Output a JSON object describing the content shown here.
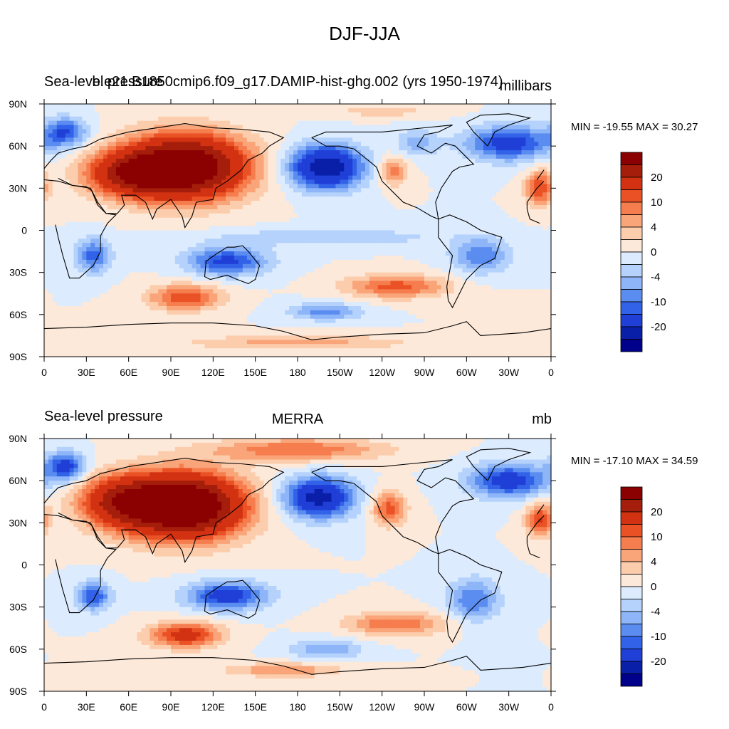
{
  "figure": {
    "title": "DJF-JJA"
  },
  "colors": {
    "levels": [
      "#00008b",
      "#0a1fa8",
      "#1f3fd6",
      "#3262e8",
      "#5b8cf0",
      "#8db5f8",
      "#b4d2fb",
      "#dcebfd",
      "#fde9d9",
      "#fccdad",
      "#f9a579",
      "#f57d4e",
      "#ea5226",
      "#d23211",
      "#a51e0b",
      "#8b0000"
    ],
    "coast": "#000000"
  },
  "panels": [
    {
      "left_string": "Sea-level pressure",
      "center_string": "b.e21.B1850cmip6.f09_g17.DAMIP-hist-ghg.002 (yrs 1950-1974)",
      "units": "millibars",
      "min_max": "MIN = -19.55 MAX =  30.27",
      "x_ticks": [
        "0",
        "30E",
        "60E",
        "90E",
        "120E",
        "150E",
        "180",
        "150W",
        "120W",
        "90W",
        "60W",
        "30W",
        "0"
      ],
      "y_ticks": [
        "90N",
        "60N",
        "30N",
        "0",
        "30S",
        "60S",
        "90S"
      ],
      "colorbar_labels": [
        "20",
        "10",
        "4",
        "0",
        "-4",
        "-10",
        "-20"
      ]
    },
    {
      "left_string": "Sea-level pressure",
      "center_string": "MERRA",
      "units": "mb",
      "min_max": "MIN = -17.10 MAX =  34.59",
      "x_ticks": [
        "0",
        "30E",
        "60E",
        "90E",
        "120E",
        "150E",
        "180",
        "150W",
        "120W",
        "90W",
        "60W",
        "30W",
        "0"
      ],
      "y_ticks": [
        "90N",
        "60N",
        "30N",
        "0",
        "30S",
        "60S",
        "90S"
      ],
      "colorbar_labels": [
        "20",
        "10",
        "4",
        "0",
        "-4",
        "-10",
        "-20"
      ]
    }
  ],
  "chart_data": {
    "type": "heatmap",
    "contour_levels": [
      -20,
      -15,
      -10,
      -8,
      -6,
      -4,
      -2,
      0,
      2,
      4,
      6,
      8,
      10,
      15,
      20
    ],
    "x_axis": "longitude 0 to 360 (0 … 180 … 0)",
    "y_axis": "latitude -90 to 90",
    "fields": [
      {
        "panel": 0,
        "features": [
          {
            "lon": 100,
            "lat": 45,
            "amp": 28,
            "sx": 42,
            "sy": 22
          },
          {
            "lon": 60,
            "lat": 40,
            "amp": 14,
            "sx": 30,
            "sy": 15
          },
          {
            "lon": 200,
            "lat": 45,
            "amp": -19,
            "sx": 25,
            "sy": 15
          },
          {
            "lon": 330,
            "lat": 62,
            "amp": -12,
            "sx": 30,
            "sy": 12
          },
          {
            "lon": 15,
            "lat": 70,
            "amp": -10,
            "sx": 15,
            "sy": 10
          },
          {
            "lon": 265,
            "lat": 62,
            "amp": -5,
            "sx": 15,
            "sy": 10
          },
          {
            "lon": 248,
            "lat": 42,
            "amp": 7,
            "sx": 10,
            "sy": 10
          },
          {
            "lon": 352,
            "lat": 30,
            "amp": 10,
            "sx": 10,
            "sy": 12
          },
          {
            "lon": 130,
            "lat": -22,
            "amp": -11,
            "sx": 28,
            "sy": 10
          },
          {
            "lon": 35,
            "lat": -18,
            "amp": -9,
            "sx": 12,
            "sy": 12
          },
          {
            "lon": 310,
            "lat": -18,
            "amp": -8,
            "sx": 20,
            "sy": 12
          },
          {
            "lon": 100,
            "lat": -48,
            "amp": 10,
            "sx": 25,
            "sy": 9
          },
          {
            "lon": 250,
            "lat": -40,
            "amp": 9,
            "sx": 35,
            "sy": 8
          },
          {
            "lon": 200,
            "lat": -58,
            "amp": -7,
            "sx": 25,
            "sy": 6
          },
          {
            "lon": 200,
            "lat": -5,
            "amp": -4,
            "sx": 80,
            "sy": 6
          },
          {
            "lon": 180,
            "lat": -80,
            "amp": 5,
            "sx": 80,
            "sy": 5
          },
          {
            "lon": 240,
            "lat": 85,
            "amp": 3,
            "sx": 40,
            "sy": 5
          }
        ]
      },
      {
        "panel": 1,
        "features": [
          {
            "lon": 100,
            "lat": 42,
            "amp": 30,
            "sx": 40,
            "sy": 22
          },
          {
            "lon": 55,
            "lat": 45,
            "amp": 15,
            "sx": 30,
            "sy": 18
          },
          {
            "lon": 195,
            "lat": 48,
            "amp": -17,
            "sx": 24,
            "sy": 14
          },
          {
            "lon": 330,
            "lat": 60,
            "amp": -12,
            "sx": 28,
            "sy": 12
          },
          {
            "lon": 15,
            "lat": 70,
            "amp": -12,
            "sx": 14,
            "sy": 10
          },
          {
            "lon": 245,
            "lat": 40,
            "amp": 9,
            "sx": 12,
            "sy": 12
          },
          {
            "lon": 352,
            "lat": 32,
            "amp": 10,
            "sx": 10,
            "sy": 12
          },
          {
            "lon": 180,
            "lat": 82,
            "amp": 8,
            "sx": 60,
            "sy": 8
          },
          {
            "lon": 130,
            "lat": -22,
            "amp": -12,
            "sx": 28,
            "sy": 10
          },
          {
            "lon": 35,
            "lat": -22,
            "amp": -10,
            "sx": 12,
            "sy": 10
          },
          {
            "lon": 305,
            "lat": -25,
            "amp": -8,
            "sx": 18,
            "sy": 15
          },
          {
            "lon": 100,
            "lat": -50,
            "amp": 12,
            "sx": 25,
            "sy": 9
          },
          {
            "lon": 250,
            "lat": -42,
            "amp": 8,
            "sx": 35,
            "sy": 8
          },
          {
            "lon": 200,
            "lat": -60,
            "amp": -6,
            "sx": 25,
            "sy": 7
          },
          {
            "lon": 170,
            "lat": -75,
            "amp": 6,
            "sx": 40,
            "sy": 5
          }
        ]
      }
    ]
  }
}
